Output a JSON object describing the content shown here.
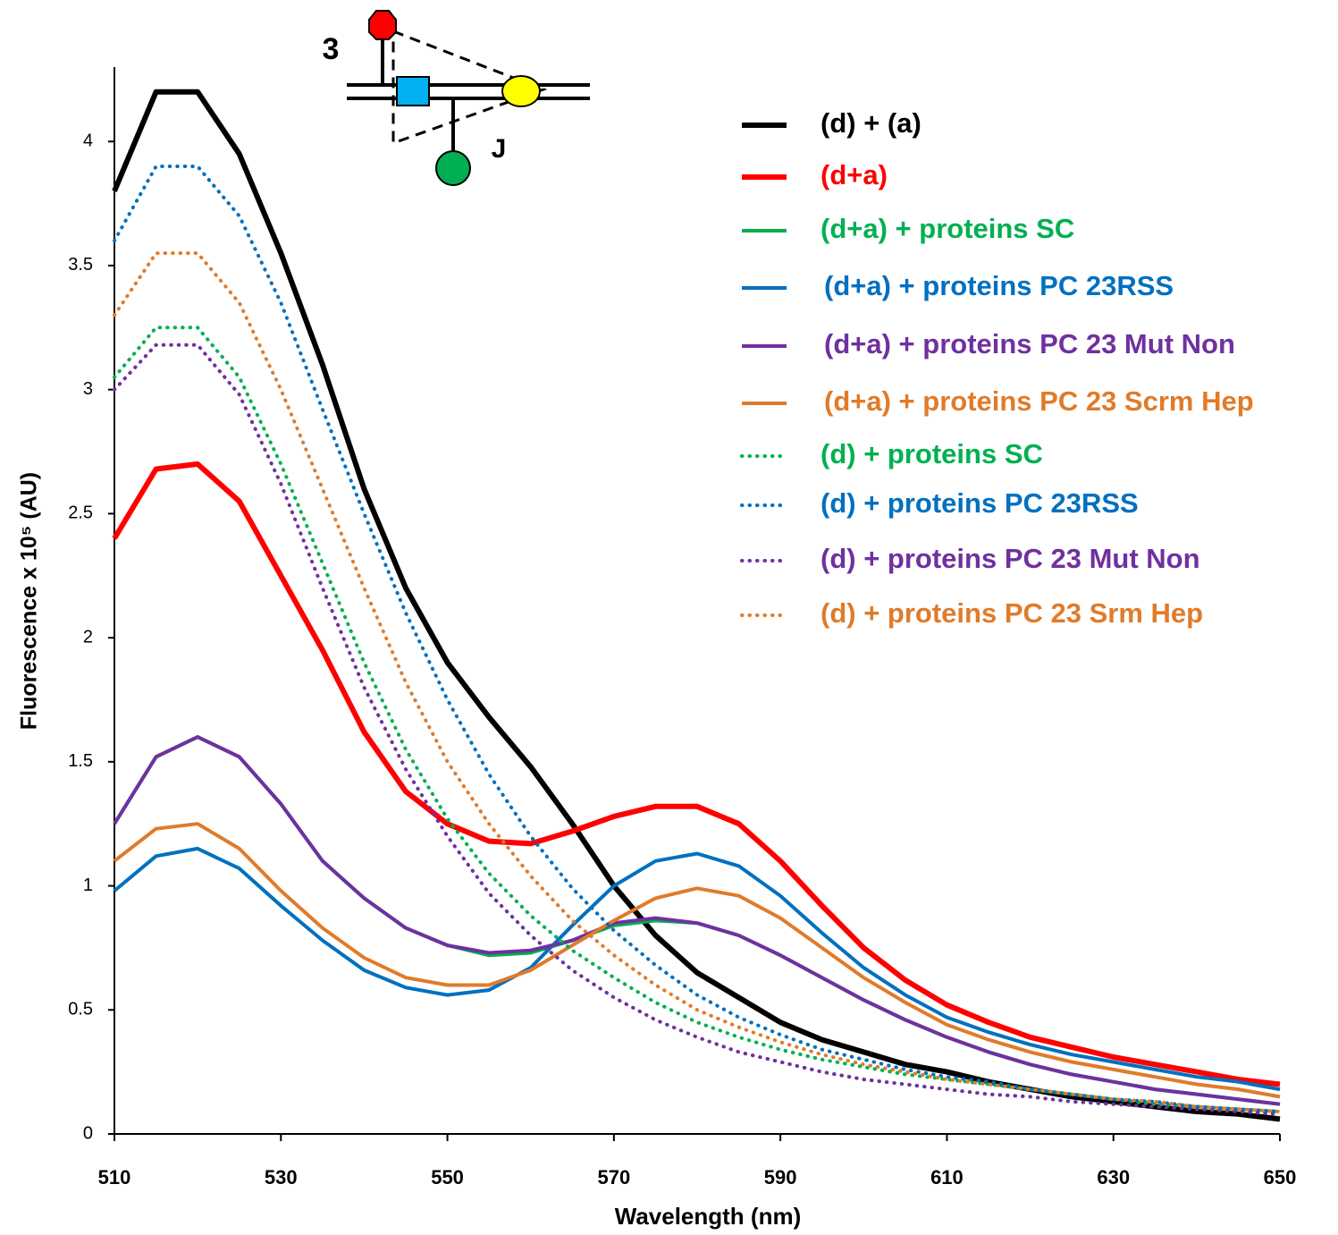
{
  "chart_data": {
    "type": "line",
    "x_label": "Wavelength (nm)",
    "y_label": "Fluorescence x 10⁵ (AU)",
    "annotations": [
      "3",
      "J"
    ],
    "xlim": [
      510,
      650
    ],
    "xticks": [
      510,
      530,
      550,
      570,
      590,
      610,
      630,
      650
    ],
    "ylim": [
      0,
      4.3
    ],
    "yticks": [
      0,
      0.5,
      1,
      1.5,
      2,
      2.5,
      3,
      3.5,
      4
    ],
    "grid": false,
    "x": [
      510,
      515,
      520,
      525,
      530,
      535,
      540,
      545,
      550,
      555,
      560,
      565,
      570,
      575,
      580,
      585,
      590,
      595,
      600,
      605,
      610,
      615,
      620,
      625,
      630,
      635,
      640,
      645,
      650
    ],
    "series": [
      {
        "name": "(d) + (a)",
        "color": "#000000",
        "dash": "solid",
        "values": [
          3.8,
          4.2,
          4.2,
          3.95,
          3.55,
          3.1,
          2.6,
          2.2,
          1.9,
          1.68,
          1.48,
          1.25,
          1.0,
          0.8,
          0.65,
          0.55,
          0.45,
          0.38,
          0.33,
          0.28,
          0.25,
          0.21,
          0.18,
          0.15,
          0.13,
          0.11,
          0.09,
          0.08,
          0.06
        ]
      },
      {
        "name": "(d+a)",
        "color": "#ff0000",
        "dash": "solid",
        "values": [
          2.4,
          2.68,
          2.7,
          2.55,
          2.25,
          1.95,
          1.62,
          1.38,
          1.25,
          1.18,
          1.17,
          1.22,
          1.28,
          1.32,
          1.32,
          1.25,
          1.1,
          0.92,
          0.75,
          0.62,
          0.52,
          0.45,
          0.39,
          0.35,
          0.31,
          0.28,
          0.25,
          0.22,
          0.2
        ]
      },
      {
        "name": "(d+a) + proteins SC",
        "color": "#00b050",
        "dash": "solid",
        "values": [
          1.25,
          1.52,
          1.6,
          1.52,
          1.33,
          1.1,
          0.95,
          0.83,
          0.76,
          0.72,
          0.73,
          0.78,
          0.84,
          0.86,
          0.85,
          0.8,
          0.72,
          0.63,
          0.54,
          0.46,
          0.39,
          0.33,
          0.28,
          0.24,
          0.21,
          0.18,
          0.16,
          0.14,
          0.12
        ]
      },
      {
        "name": "(d+a) + proteins PC 23RSS",
        "color": "#0070c0",
        "dash": "solid",
        "values": [
          0.98,
          1.12,
          1.15,
          1.07,
          0.92,
          0.78,
          0.66,
          0.59,
          0.56,
          0.58,
          0.67,
          0.84,
          1.0,
          1.1,
          1.13,
          1.08,
          0.96,
          0.81,
          0.67,
          0.56,
          0.47,
          0.41,
          0.36,
          0.32,
          0.29,
          0.26,
          0.23,
          0.21,
          0.18
        ]
      },
      {
        "name": "(d+a) + proteins PC 23 Mut Non",
        "color": "#7030a0",
        "dash": "solid",
        "values": [
          1.25,
          1.52,
          1.6,
          1.52,
          1.33,
          1.1,
          0.95,
          0.83,
          0.76,
          0.73,
          0.74,
          0.78,
          0.85,
          0.87,
          0.85,
          0.8,
          0.72,
          0.63,
          0.54,
          0.46,
          0.39,
          0.33,
          0.28,
          0.24,
          0.21,
          0.18,
          0.16,
          0.14,
          0.12
        ]
      },
      {
        "name": "(d+a) + proteins PC 23 Scrm Hep",
        "color": "#e07b2a",
        "dash": "solid",
        "values": [
          1.1,
          1.23,
          1.25,
          1.15,
          0.98,
          0.83,
          0.71,
          0.63,
          0.6,
          0.6,
          0.66,
          0.76,
          0.86,
          0.95,
          0.99,
          0.96,
          0.87,
          0.75,
          0.63,
          0.53,
          0.44,
          0.38,
          0.33,
          0.29,
          0.26,
          0.23,
          0.2,
          0.18,
          0.15
        ]
      },
      {
        "name": "(d) + proteins SC",
        "color": "#00b050",
        "dash": "dotted",
        "values": [
          3.05,
          3.25,
          3.25,
          3.05,
          2.7,
          2.3,
          1.9,
          1.55,
          1.27,
          1.05,
          0.88,
          0.74,
          0.63,
          0.53,
          0.45,
          0.39,
          0.34,
          0.3,
          0.27,
          0.24,
          0.22,
          0.2,
          0.18,
          0.16,
          0.14,
          0.12,
          0.11,
          0.1,
          0.09
        ]
      },
      {
        "name": "(d) + proteins PC 23RSS",
        "color": "#0070c0",
        "dash": "dotted",
        "values": [
          3.6,
          3.9,
          3.9,
          3.7,
          3.35,
          2.92,
          2.5,
          2.1,
          1.75,
          1.45,
          1.2,
          0.99,
          0.82,
          0.68,
          0.56,
          0.47,
          0.4,
          0.34,
          0.3,
          0.26,
          0.23,
          0.21,
          0.18,
          0.16,
          0.14,
          0.13,
          0.11,
          0.1,
          0.09
        ]
      },
      {
        "name": "(d) + proteins PC 23 Mut Non",
        "color": "#7030a0",
        "dash": "dotted",
        "values": [
          3.0,
          3.18,
          3.18,
          2.98,
          2.62,
          2.2,
          1.8,
          1.47,
          1.2,
          0.97,
          0.8,
          0.66,
          0.55,
          0.46,
          0.39,
          0.33,
          0.29,
          0.25,
          0.22,
          0.2,
          0.18,
          0.16,
          0.15,
          0.13,
          0.12,
          0.11,
          0.1,
          0.09,
          0.08
        ]
      },
      {
        "name": "(d) + proteins PC 23 Srm Hep",
        "color": "#e07b2a",
        "dash": "dotted",
        "values": [
          3.3,
          3.55,
          3.55,
          3.35,
          3.0,
          2.6,
          2.2,
          1.82,
          1.5,
          1.25,
          1.04,
          0.86,
          0.72,
          0.6,
          0.5,
          0.43,
          0.37,
          0.32,
          0.28,
          0.25,
          0.22,
          0.2,
          0.18,
          0.16,
          0.14,
          0.13,
          0.11,
          0.1,
          0.09
        ]
      }
    ]
  }
}
